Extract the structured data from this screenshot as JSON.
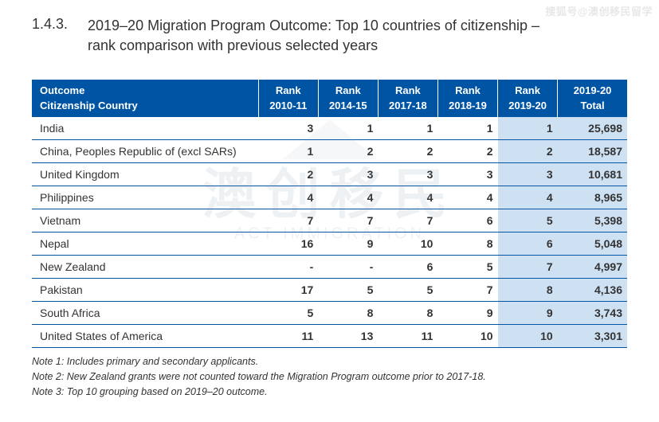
{
  "top_right_label": "搜狐号@澳创移民留学",
  "watermark": {
    "main": "澳创移民",
    "sub": "ACT IMMIGRATION"
  },
  "section": {
    "number": "1.4.3.",
    "title_line1": "2019–20 Migration Program Outcome: Top 10 countries of citizenship –",
    "title_line2": "rank comparison with previous selected years"
  },
  "table": {
    "header": {
      "outcome_label": "Outcome",
      "country_label": "Citizenship Country",
      "columns": [
        {
          "top": "Rank",
          "bottom": "2010-11",
          "highlight": false
        },
        {
          "top": "Rank",
          "bottom": "2014-15",
          "highlight": false
        },
        {
          "top": "Rank",
          "bottom": "2017-18",
          "highlight": false
        },
        {
          "top": "Rank",
          "bottom": "2018-19",
          "highlight": false
        },
        {
          "top": "Rank",
          "bottom": "2019-20",
          "highlight": true
        },
        {
          "top": "2019-20",
          "bottom": "Total",
          "highlight": true
        }
      ]
    },
    "rows": [
      {
        "country": "India",
        "r1": "3",
        "r2": "1",
        "r3": "1",
        "r4": "1",
        "r5": "1",
        "total": "25,698"
      },
      {
        "country": "China, Peoples Republic of (excl SARs)",
        "r1": "1",
        "r2": "2",
        "r3": "2",
        "r4": "2",
        "r5": "2",
        "total": "18,587"
      },
      {
        "country": "United Kingdom",
        "r1": "2",
        "r2": "3",
        "r3": "3",
        "r4": "3",
        "r5": "3",
        "total": "10,681"
      },
      {
        "country": "Philippines",
        "r1": "4",
        "r2": "4",
        "r3": "4",
        "r4": "4",
        "r5": "4",
        "total": "8,965"
      },
      {
        "country": "Vietnam",
        "r1": "7",
        "r2": "7",
        "r3": "7",
        "r4": "6",
        "r5": "5",
        "total": "5,398"
      },
      {
        "country": "Nepal",
        "r1": "16",
        "r2": "9",
        "r3": "10",
        "r4": "8",
        "r5": "6",
        "total": "5,048"
      },
      {
        "country": "New Zealand",
        "r1": "-",
        "r2": "-",
        "r3": "6",
        "r4": "5",
        "r5": "7",
        "total": "4,997"
      },
      {
        "country": "Pakistan",
        "r1": "17",
        "r2": "5",
        "r3": "5",
        "r4": "7",
        "r5": "8",
        "total": "4,136"
      },
      {
        "country": "South Africa",
        "r1": "5",
        "r2": "8",
        "r3": "8",
        "r4": "9",
        "r5": "9",
        "total": "3,743"
      },
      {
        "country": "United States of America",
        "r1": "11",
        "r2": "13",
        "r3": "11",
        "r4": "10",
        "r5": "10",
        "total": "3,301"
      }
    ]
  },
  "notes": [
    "Note 1: Includes primary and secondary applicants.",
    "Note 2: New Zealand grants were not counted toward the Migration Program outcome prior to 2017-18.",
    "Note 3: Top 10 grouping based on 2019–20 outcome."
  ],
  "style": {
    "header_bg": "#0054a4",
    "header_fg": "#ffffff",
    "row_border": "#0054a4",
    "highlight_bg": "#cee1f3",
    "page_bg": "#ffffff",
    "text_color": "#333333"
  }
}
